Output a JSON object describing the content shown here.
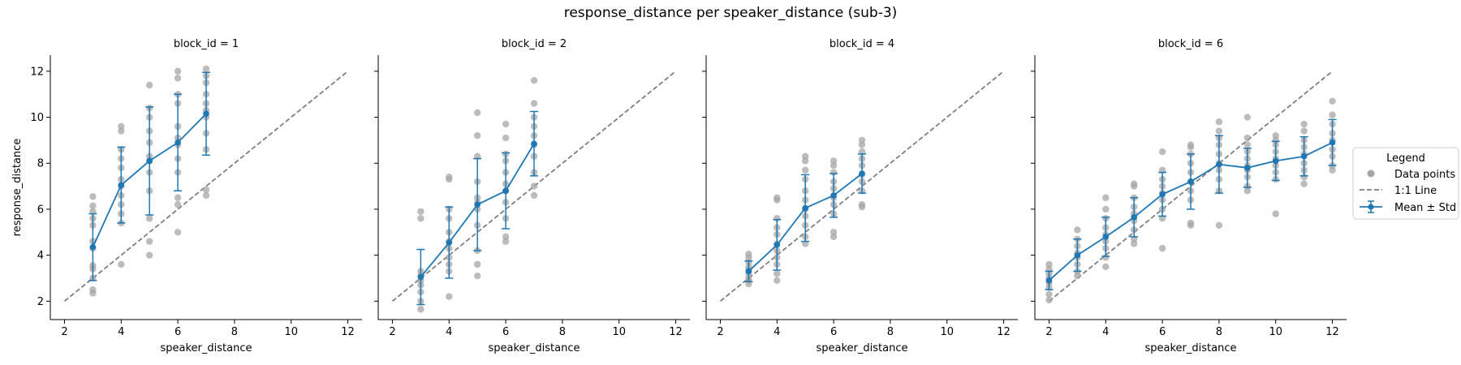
{
  "figure": {
    "title": "response_distance per speaker_distance (sub-3)"
  },
  "legend": {
    "title": "Legend",
    "entries": [
      "Data points",
      "1:1 Line",
      "Mean ± Std"
    ]
  },
  "colors": {
    "points": "#a6a6a6",
    "identity_line": "#7f7f7f",
    "mean": "#1f77b4"
  },
  "chart_data": [
    {
      "type": "scatter",
      "title": "block_id = 1",
      "xlabel": "speaker_distance",
      "ylabel": "response_distance",
      "xlim": [
        1.5,
        12.5
      ],
      "ylim": [
        1.2,
        12.7
      ],
      "xticks": [
        2,
        4,
        6,
        8,
        10,
        12
      ],
      "yticks": [
        2,
        4,
        6,
        8,
        10,
        12
      ],
      "identity_line": [
        [
          2,
          2
        ],
        [
          12,
          12
        ]
      ],
      "mean_std": [
        {
          "x": 3,
          "mean": 4.35,
          "std": 1.45
        },
        {
          "x": 4,
          "mean": 7.05,
          "std": 1.65
        },
        {
          "x": 5,
          "mean": 8.1,
          "std": 2.35
        },
        {
          "x": 6,
          "mean": 8.9,
          "std": 2.1
        },
        {
          "x": 7,
          "mean": 10.15,
          "std": 1.8
        }
      ],
      "points": [
        [
          3,
          2.35
        ],
        [
          3,
          2.5
        ],
        [
          3,
          3.0
        ],
        [
          3,
          3.4
        ],
        [
          3,
          3.55
        ],
        [
          3,
          4.3
        ],
        [
          3,
          4.6
        ],
        [
          3,
          5.3
        ],
        [
          3,
          5.6
        ],
        [
          3,
          5.9
        ],
        [
          3,
          6.15
        ],
        [
          3,
          6.55
        ],
        [
          4,
          3.6
        ],
        [
          4,
          5.4
        ],
        [
          4,
          5.8
        ],
        [
          4,
          6.2
        ],
        [
          4,
          6.6
        ],
        [
          4,
          7.0
        ],
        [
          4,
          7.3
        ],
        [
          4,
          7.8
        ],
        [
          4,
          8.2
        ],
        [
          4,
          8.6
        ],
        [
          4,
          9.4
        ],
        [
          4,
          9.6
        ],
        [
          5,
          4.0
        ],
        [
          5,
          4.6
        ],
        [
          5,
          5.6
        ],
        [
          5,
          6.8
        ],
        [
          5,
          7.6
        ],
        [
          5,
          8.1
        ],
        [
          5,
          8.3
        ],
        [
          5,
          8.9
        ],
        [
          5,
          9.4
        ],
        [
          5,
          10.0
        ],
        [
          5,
          10.4
        ],
        [
          5,
          11.4
        ],
        [
          6,
          5.0
        ],
        [
          6,
          6.2
        ],
        [
          6,
          6.5
        ],
        [
          6,
          7.6
        ],
        [
          6,
          8.2
        ],
        [
          6,
          8.8
        ],
        [
          6,
          9.1
        ],
        [
          6,
          9.6
        ],
        [
          6,
          10.6
        ],
        [
          6,
          11.0
        ],
        [
          6,
          11.7
        ],
        [
          6,
          12.0
        ],
        [
          7,
          6.6
        ],
        [
          7,
          6.85
        ],
        [
          7,
          8.6
        ],
        [
          7,
          9.3
        ],
        [
          7,
          10.0
        ],
        [
          7,
          10.3
        ],
        [
          7,
          10.6
        ],
        [
          7,
          11.0
        ],
        [
          7,
          11.5
        ],
        [
          7,
          11.8
        ],
        [
          7,
          12.1
        ]
      ]
    },
    {
      "type": "scatter",
      "title": "block_id = 2",
      "xlabel": "speaker_distance",
      "ylabel": "",
      "xlim": [
        1.5,
        12.5
      ],
      "ylim": [
        1.2,
        12.7
      ],
      "xticks": [
        2,
        4,
        6,
        8,
        10,
        12
      ],
      "yticks": [
        2,
        4,
        6,
        8,
        10,
        12
      ],
      "identity_line": [
        [
          2,
          2
        ],
        [
          12,
          12
        ]
      ],
      "mean_std": [
        {
          "x": 3,
          "mean": 3.05,
          "std": 1.2
        },
        {
          "x": 4,
          "mean": 4.55,
          "std": 1.55
        },
        {
          "x": 5,
          "mean": 6.2,
          "std": 2.0
        },
        {
          "x": 6,
          "mean": 6.8,
          "std": 1.65
        },
        {
          "x": 7,
          "mean": 8.85,
          "std": 1.4
        }
      ],
      "points": [
        [
          3,
          1.65
        ],
        [
          3,
          2.0
        ],
        [
          3,
          2.4
        ],
        [
          3,
          2.7
        ],
        [
          3,
          2.9
        ],
        [
          3,
          3.1
        ],
        [
          3,
          3.3
        ],
        [
          3,
          5.6
        ],
        [
          3,
          5.9
        ],
        [
          4,
          2.2
        ],
        [
          4,
          3.3
        ],
        [
          4,
          3.6
        ],
        [
          4,
          3.9
        ],
        [
          4,
          4.3
        ],
        [
          4,
          4.6
        ],
        [
          4,
          5.0
        ],
        [
          4,
          5.6
        ],
        [
          4,
          6.0
        ],
        [
          4,
          7.3
        ],
        [
          4,
          7.4
        ],
        [
          5,
          3.1
        ],
        [
          5,
          3.6
        ],
        [
          5,
          4.2
        ],
        [
          5,
          5.3
        ],
        [
          5,
          6.0
        ],
        [
          5,
          6.3
        ],
        [
          5,
          6.5
        ],
        [
          5,
          7.2
        ],
        [
          5,
          8.3
        ],
        [
          5,
          9.2
        ],
        [
          5,
          10.2
        ],
        [
          6,
          4.6
        ],
        [
          6,
          4.8
        ],
        [
          6,
          5.6
        ],
        [
          6,
          6.3
        ],
        [
          6,
          6.8
        ],
        [
          6,
          7.1
        ],
        [
          6,
          7.6
        ],
        [
          6,
          8.1
        ],
        [
          6,
          8.4
        ],
        [
          6,
          9.1
        ],
        [
          6,
          9.7
        ],
        [
          7,
          6.6
        ],
        [
          7,
          7.0
        ],
        [
          7,
          7.6
        ],
        [
          7,
          8.3
        ],
        [
          7,
          8.8
        ],
        [
          7,
          9.2
        ],
        [
          7,
          9.6
        ],
        [
          7,
          10.0
        ],
        [
          7,
          10.6
        ],
        [
          7,
          11.6
        ]
      ]
    },
    {
      "type": "scatter",
      "title": "block_id = 4",
      "xlabel": "speaker_distance",
      "ylabel": "",
      "xlim": [
        1.5,
        12.5
      ],
      "ylim": [
        1.2,
        12.7
      ],
      "xticks": [
        2,
        4,
        6,
        8,
        10,
        12
      ],
      "yticks": [
        2,
        4,
        6,
        8,
        10,
        12
      ],
      "identity_line": [
        [
          2,
          2
        ],
        [
          12,
          12
        ]
      ],
      "mean_std": [
        {
          "x": 3,
          "mean": 3.3,
          "std": 0.45
        },
        {
          "x": 4,
          "mean": 4.45,
          "std": 1.1
        },
        {
          "x": 5,
          "mean": 6.05,
          "std": 1.45
        },
        {
          "x": 6,
          "mean": 6.6,
          "std": 0.95
        },
        {
          "x": 7,
          "mean": 7.55,
          "std": 0.85
        }
      ],
      "points": [
        [
          3,
          2.75
        ],
        [
          3,
          2.9
        ],
        [
          3,
          3.0
        ],
        [
          3,
          3.2
        ],
        [
          3,
          3.35
        ],
        [
          3,
          3.5
        ],
        [
          3,
          3.7
        ],
        [
          3,
          3.9
        ],
        [
          3,
          4.05
        ],
        [
          4,
          2.9
        ],
        [
          4,
          3.2
        ],
        [
          4,
          3.6
        ],
        [
          4,
          3.9
        ],
        [
          4,
          4.2
        ],
        [
          4,
          4.5
        ],
        [
          4,
          4.9
        ],
        [
          4,
          5.2
        ],
        [
          4,
          5.6
        ],
        [
          4,
          6.4
        ],
        [
          4,
          6.5
        ],
        [
          5,
          4.5
        ],
        [
          5,
          4.8
        ],
        [
          5,
          5.3
        ],
        [
          5,
          5.7
        ],
        [
          5,
          6.0
        ],
        [
          5,
          6.4
        ],
        [
          5,
          6.8
        ],
        [
          5,
          7.3
        ],
        [
          5,
          7.7
        ],
        [
          5,
          8.1
        ],
        [
          5,
          8.3
        ],
        [
          6,
          4.8
        ],
        [
          6,
          5.0
        ],
        [
          6,
          5.8
        ],
        [
          6,
          6.2
        ],
        [
          6,
          6.5
        ],
        [
          6,
          6.9
        ],
        [
          6,
          7.2
        ],
        [
          6,
          7.6
        ],
        [
          6,
          7.9
        ],
        [
          6,
          8.1
        ],
        [
          7,
          6.1
        ],
        [
          7,
          6.2
        ],
        [
          7,
          6.8
        ],
        [
          7,
          7.2
        ],
        [
          7,
          7.5
        ],
        [
          7,
          7.9
        ],
        [
          7,
          8.2
        ],
        [
          7,
          8.5
        ],
        [
          7,
          8.8
        ],
        [
          7,
          9.0
        ]
      ]
    },
    {
      "type": "scatter",
      "title": "block_id = 6",
      "xlabel": "speaker_distance",
      "ylabel": "",
      "xlim": [
        1.5,
        12.5
      ],
      "ylim": [
        1.2,
        12.7
      ],
      "xticks": [
        2,
        4,
        6,
        8,
        10,
        12
      ],
      "yticks": [
        2,
        4,
        6,
        8,
        10,
        12
      ],
      "identity_line": [
        [
          2,
          2
        ],
        [
          12,
          12
        ]
      ],
      "mean_std": [
        {
          "x": 2,
          "mean": 2.9,
          "std": 0.4
        },
        {
          "x": 3,
          "mean": 4.0,
          "std": 0.7
        },
        {
          "x": 4,
          "mean": 4.8,
          "std": 0.85
        },
        {
          "x": 5,
          "mean": 5.65,
          "std": 0.85
        },
        {
          "x": 6,
          "mean": 6.65,
          "std": 0.95
        },
        {
          "x": 7,
          "mean": 7.2,
          "std": 1.2
        },
        {
          "x": 8,
          "mean": 7.95,
          "std": 1.25
        },
        {
          "x": 9,
          "mean": 7.8,
          "std": 0.85
        },
        {
          "x": 10,
          "mean": 8.1,
          "std": 0.85
        },
        {
          "x": 11,
          "mean": 8.3,
          "std": 0.85
        },
        {
          "x": 12,
          "mean": 8.9,
          "std": 1.0
        }
      ],
      "points": [
        [
          2,
          2.05
        ],
        [
          2,
          2.3
        ],
        [
          2,
          2.6
        ],
        [
          2,
          2.8
        ],
        [
          2,
          3.0
        ],
        [
          2,
          3.2
        ],
        [
          2,
          3.4
        ],
        [
          2,
          3.6
        ],
        [
          3,
          3.1
        ],
        [
          3,
          3.3
        ],
        [
          3,
          3.6
        ],
        [
          3,
          3.9
        ],
        [
          3,
          4.1
        ],
        [
          3,
          4.4
        ],
        [
          3,
          4.7
        ],
        [
          3,
          5.1
        ],
        [
          4,
          3.5
        ],
        [
          4,
          3.9
        ],
        [
          4,
          4.3
        ],
        [
          4,
          4.6
        ],
        [
          4,
          4.9
        ],
        [
          4,
          5.2
        ],
        [
          4,
          5.6
        ],
        [
          4,
          6.0
        ],
        [
          4,
          6.5
        ],
        [
          5,
          4.5
        ],
        [
          5,
          4.7
        ],
        [
          5,
          5.1
        ],
        [
          5,
          5.5
        ],
        [
          5,
          5.8
        ],
        [
          5,
          6.1
        ],
        [
          5,
          6.5
        ],
        [
          5,
          7.0
        ],
        [
          5,
          7.1
        ],
        [
          6,
          4.3
        ],
        [
          6,
          5.6
        ],
        [
          6,
          6.0
        ],
        [
          6,
          6.4
        ],
        [
          6,
          6.7
        ],
        [
          6,
          7.0
        ],
        [
          6,
          7.3
        ],
        [
          6,
          7.7
        ],
        [
          6,
          8.5
        ],
        [
          7,
          5.3
        ],
        [
          7,
          5.4
        ],
        [
          7,
          6.4
        ],
        [
          7,
          6.8
        ],
        [
          7,
          7.2
        ],
        [
          7,
          7.6
        ],
        [
          7,
          8.0
        ],
        [
          7,
          8.4
        ],
        [
          7,
          8.7
        ],
        [
          7,
          8.8
        ],
        [
          8,
          5.3
        ],
        [
          8,
          6.8
        ],
        [
          8,
          7.3
        ],
        [
          8,
          7.7
        ],
        [
          8,
          8.0
        ],
        [
          8,
          8.4
        ],
        [
          8,
          8.8
        ],
        [
          8,
          9.1
        ],
        [
          8,
          9.4
        ],
        [
          8,
          9.8
        ],
        [
          9,
          6.8
        ],
        [
          9,
          7.0
        ],
        [
          9,
          7.4
        ],
        [
          9,
          7.7
        ],
        [
          9,
          7.9
        ],
        [
          9,
          8.2
        ],
        [
          9,
          8.5
        ],
        [
          9,
          8.8
        ],
        [
          9,
          9.1
        ],
        [
          9,
          10.0
        ],
        [
          10,
          5.8
        ],
        [
          10,
          7.3
        ],
        [
          10,
          7.6
        ],
        [
          10,
          7.9
        ],
        [
          10,
          8.2
        ],
        [
          10,
          8.5
        ],
        [
          10,
          8.8
        ],
        [
          10,
          9.0
        ],
        [
          10,
          9.2
        ],
        [
          11,
          7.1
        ],
        [
          11,
          7.4
        ],
        [
          11,
          7.7
        ],
        [
          11,
          8.0
        ],
        [
          11,
          8.4
        ],
        [
          11,
          8.7
        ],
        [
          11,
          9.0
        ],
        [
          11,
          9.4
        ],
        [
          11,
          9.7
        ],
        [
          12,
          7.7
        ],
        [
          12,
          7.9
        ],
        [
          12,
          8.3
        ],
        [
          12,
          8.6
        ],
        [
          12,
          9.0
        ],
        [
          12,
          9.3
        ],
        [
          12,
          9.7
        ],
        [
          12,
          10.1
        ],
        [
          12,
          10.7
        ]
      ]
    }
  ]
}
